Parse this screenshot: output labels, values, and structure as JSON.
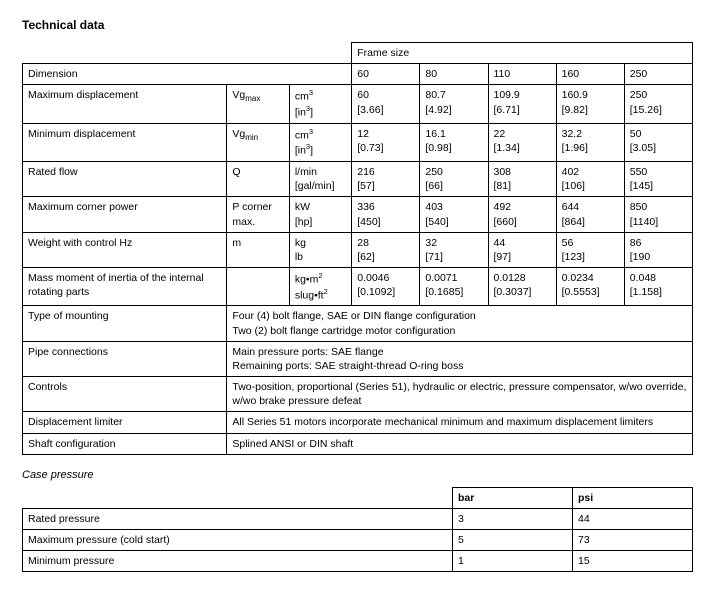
{
  "titles": {
    "main": "Technical data",
    "case_pressure": "Case pressure"
  },
  "tech": {
    "frame_size_label": "Frame size",
    "dimension_label": "Dimension",
    "frame_sizes": [
      "60",
      "80",
      "110",
      "160",
      "250"
    ],
    "rows": [
      {
        "label": "Maximum displacement",
        "sym_html": "Vg<sub>max</sub>",
        "unit_html": "cm<sup>3</sup><br>[in<sup>3</sup>]",
        "v": [
          "60<br>[3.66]",
          "80.7<br>[4.92]",
          "109.9<br>[6.71]",
          "160.9<br>[9.82]",
          "250<br>[15.26]"
        ]
      },
      {
        "label": "Minimum displacement",
        "sym_html": "Vg<sub>min</sub>",
        "unit_html": "cm<sup>3</sup><br>[in<sup>3</sup>]",
        "v": [
          "12<br>[0.73]",
          "16.1<br>[0.98]",
          "22<br>[1.34]",
          "32.2<br>[1.96]",
          "50<br>[3.05]"
        ]
      },
      {
        "label": "Rated flow",
        "sym_html": "Q",
        "unit_html": "l/min<br>[gal/min]",
        "v": [
          "216<br>[57]",
          "250<br>[66]",
          "308<br>[81]",
          "402<br>[106]",
          "550<br>[145]"
        ]
      },
      {
        "label": "Maximum corner power",
        "sym_html": "P corner<br>max.",
        "unit_html": "kW<br>[hp]",
        "v": [
          "336<br>[450]",
          "403<br>[540]",
          "492<br>[660]",
          "644<br>[864]",
          "850<br>[1140]"
        ]
      },
      {
        "label": "Weight with control Hz",
        "sym_html": "m",
        "unit_html": "kg<br>lb",
        "v": [
          "28<br>[62]",
          "32<br>[71]",
          "44<br>[97]",
          "56<br>[123]",
          "86<br>[190"
        ]
      },
      {
        "label": "Mass moment of inertia of the internal rotating parts",
        "sym_html": "",
        "unit_html": "kg•m<sup>2</sup><br>slug•ft<sup>2</sup>",
        "v": [
          "0.0046<br>[0.1092]",
          "0.0071<br>[0.1685]",
          "0.0128<br>[0.3037]",
          "0.0234<br>[0.5553]",
          "0.048<br>[1.158]"
        ]
      }
    ],
    "span_rows": [
      {
        "label": "Type of mounting",
        "text": "Four (4) bolt flange, SAE or DIN flange configuration<br>Two (2) bolt flange cartridge motor configuration"
      },
      {
        "label": "Pipe connections",
        "text": "Main pressure ports: SAE flange<br>Remaining ports: SAE straight-thread O-ring boss"
      },
      {
        "label": "Controls",
        "text": "Two-position, proportional (Series 51), hydraulic or electric, pressure compensator, w/wo override, w/wo brake pressure defeat"
      },
      {
        "label": "Displacement limiter",
        "text": "All Series 51 motors incorporate mechanical minimum and maximum displacement limiters"
      },
      {
        "label": "Shaft configuration",
        "text": "Splined ANSI or DIN shaft"
      }
    ]
  },
  "case_pressure": {
    "headers": [
      "bar",
      "psi"
    ],
    "rows": [
      {
        "label": "Rated pressure",
        "bar": "3",
        "psi": "44"
      },
      {
        "label": "Maximum pressure (cold start)",
        "bar": "5",
        "psi": "73"
      },
      {
        "label": "Minimum pressure",
        "bar": "1",
        "psi": "15"
      }
    ]
  }
}
